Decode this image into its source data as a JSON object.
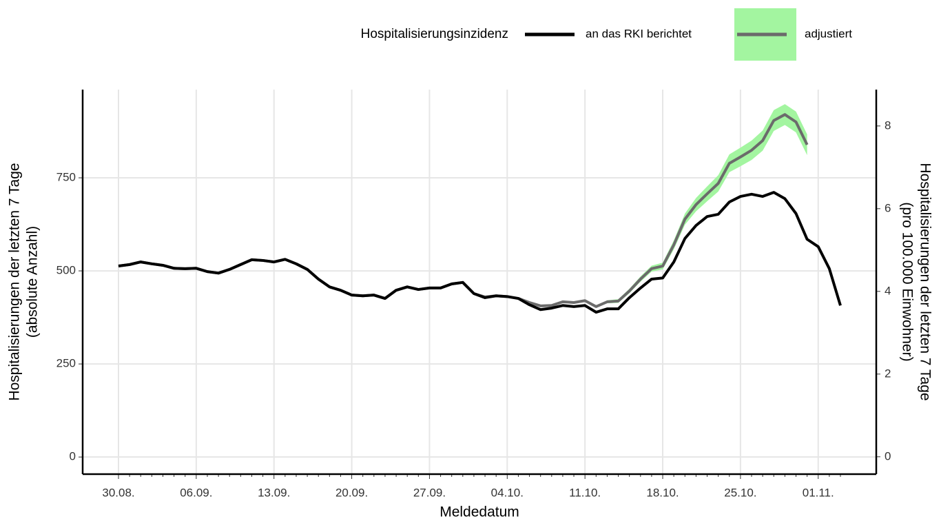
{
  "chart_data": {
    "type": "line",
    "legend_title": "Hospitalisierungsinzidenz",
    "legend_position": "top",
    "x_label": "Meldedatum",
    "y_label": [
      "Hospitalisierungen der letzten 7 Tage",
      "(absolute Anzahl)"
    ],
    "y2_label": [
      "Hospitalisierungen der letzten 7 Tage",
      "(pro 100.000 Einwohner)"
    ],
    "categories": [
      "30.08.",
      null,
      null,
      null,
      null,
      null,
      null,
      "06.09.",
      null,
      null,
      null,
      null,
      null,
      null,
      "13.09.",
      null,
      null,
      null,
      null,
      null,
      null,
      "20.09.",
      null,
      null,
      null,
      null,
      null,
      null,
      "27.09.",
      null,
      null,
      null,
      null,
      null,
      null,
      "04.10.",
      null,
      null,
      null,
      null,
      null,
      null,
      "11.10.",
      null,
      null,
      null,
      null,
      null,
      null,
      "18.10.",
      null,
      null,
      null,
      null,
      null,
      null,
      "25.10.",
      null,
      null,
      null,
      null,
      null,
      null,
      "01.11.",
      null,
      null
    ],
    "ylim": [
      -46,
      987
    ],
    "yticks": [
      0,
      250,
      500,
      750
    ],
    "y2lim": [
      -0.42,
      8.88
    ],
    "y2ticks": [
      0,
      2,
      4,
      6,
      8
    ],
    "grid": true,
    "series": [
      {
        "name": "an das RKI berichtet",
        "color": "#000000",
        "values": [
          513,
          517,
          524,
          519,
          515,
          507,
          506,
          507,
          498,
          494,
          504,
          517,
          530,
          528,
          524,
          531,
          519,
          504,
          478,
          457,
          448,
          435,
          433,
          435,
          426,
          448,
          457,
          450,
          454,
          454,
          465,
          469,
          439,
          428,
          433,
          431,
          426,
          409,
          396,
          400,
          407,
          404,
          407,
          389,
          398,
          398,
          428,
          454,
          478,
          481,
          524,
          587,
          622,
          646,
          652,
          685,
          700,
          706,
          700,
          711,
          694,
          654,
          585,
          565,
          506,
          407
        ]
      },
      {
        "name": "adjustiert",
        "color": "#6b6b6b",
        "band_color": "#a3f5a0",
        "values": [
          513,
          517,
          524,
          519,
          515,
          507,
          506,
          507,
          498,
          494,
          504,
          517,
          530,
          528,
          524,
          531,
          519,
          504,
          478,
          457,
          448,
          435,
          433,
          435,
          426,
          448,
          457,
          450,
          454,
          454,
          465,
          469,
          439,
          430,
          433,
          431,
          426,
          415,
          406,
          407,
          417,
          415,
          420,
          404,
          417,
          419,
          446,
          478,
          506,
          513,
          570,
          639,
          678,
          707,
          735,
          789,
          806,
          824,
          850,
          904,
          920,
          900,
          839,
          null,
          null,
          null
        ],
        "lower": [
          null,
          null,
          null,
          null,
          null,
          null,
          null,
          null,
          null,
          null,
          null,
          null,
          null,
          null,
          null,
          null,
          null,
          null,
          null,
          null,
          null,
          null,
          null,
          null,
          null,
          null,
          null,
          null,
          null,
          null,
          null,
          null,
          null,
          null,
          null,
          null,
          null,
          null,
          null,
          null,
          null,
          null,
          null,
          null,
          413,
          414,
          440,
          471,
          498,
          504,
          558,
          624,
          660,
          687,
          713,
          765,
          781,
          798,
          823,
          876,
          892,
          872,
          811,
          null,
          null,
          null
        ],
        "upper": [
          null,
          null,
          null,
          null,
          null,
          null,
          null,
          null,
          null,
          null,
          null,
          null,
          null,
          null,
          null,
          null,
          null,
          null,
          null,
          null,
          null,
          null,
          null,
          null,
          null,
          null,
          null,
          null,
          null,
          null,
          null,
          null,
          null,
          null,
          null,
          null,
          null,
          null,
          null,
          null,
          null,
          null,
          null,
          null,
          421,
          424,
          452,
          485,
          514,
          522,
          582,
          654,
          696,
          727,
          757,
          813,
          831,
          850,
          877,
          932,
          948,
          928,
          867,
          null,
          null,
          null
        ]
      }
    ]
  }
}
